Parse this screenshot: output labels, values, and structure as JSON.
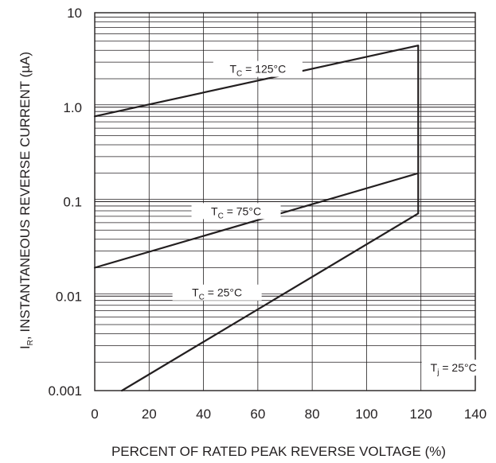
{
  "chart_data": {
    "type": "line",
    "x_scale": "linear",
    "y_scale": "log",
    "xlim": [
      0,
      140
    ],
    "ylim": [
      0.001,
      10
    ],
    "x_ticks": [
      "0",
      "20",
      "40",
      "60",
      "80",
      "100",
      "120",
      "140"
    ],
    "y_ticks": [
      "0.001",
      "0.01",
      "0.1",
      "1.0",
      "10"
    ],
    "xlabel": "PERCENT OF RATED PEAK REVERSE VOLTAGE (%)",
    "ylabel": {
      "prefix": "I",
      "subscript": "R",
      "rest": ", INSTANTANEOUS REVERSE CURRENT (µA)"
    },
    "grid": true,
    "series": [
      {
        "label": {
          "main": "T",
          "sub": "C",
          "rest": " = 125°C"
        },
        "points": [
          [
            0,
            0.8
          ],
          [
            119,
            4.5
          ]
        ]
      },
      {
        "label": {
          "main": "T",
          "sub": "C",
          "rest": " = 75°C"
        },
        "points": [
          [
            0,
            0.02
          ],
          [
            119,
            0.2
          ]
        ]
      },
      {
        "label": {
          "main": "T",
          "sub": "C",
          "rest": " = 25°C"
        },
        "points": [
          [
            10,
            0.001
          ],
          [
            119,
            0.075
          ]
        ]
      }
    ],
    "vertical_line": {
      "x": 119,
      "y_from": 0.075,
      "y_to": 4.5
    },
    "annotation": {
      "main": "T",
      "sub": "j",
      "rest": " = 25°C"
    }
  }
}
